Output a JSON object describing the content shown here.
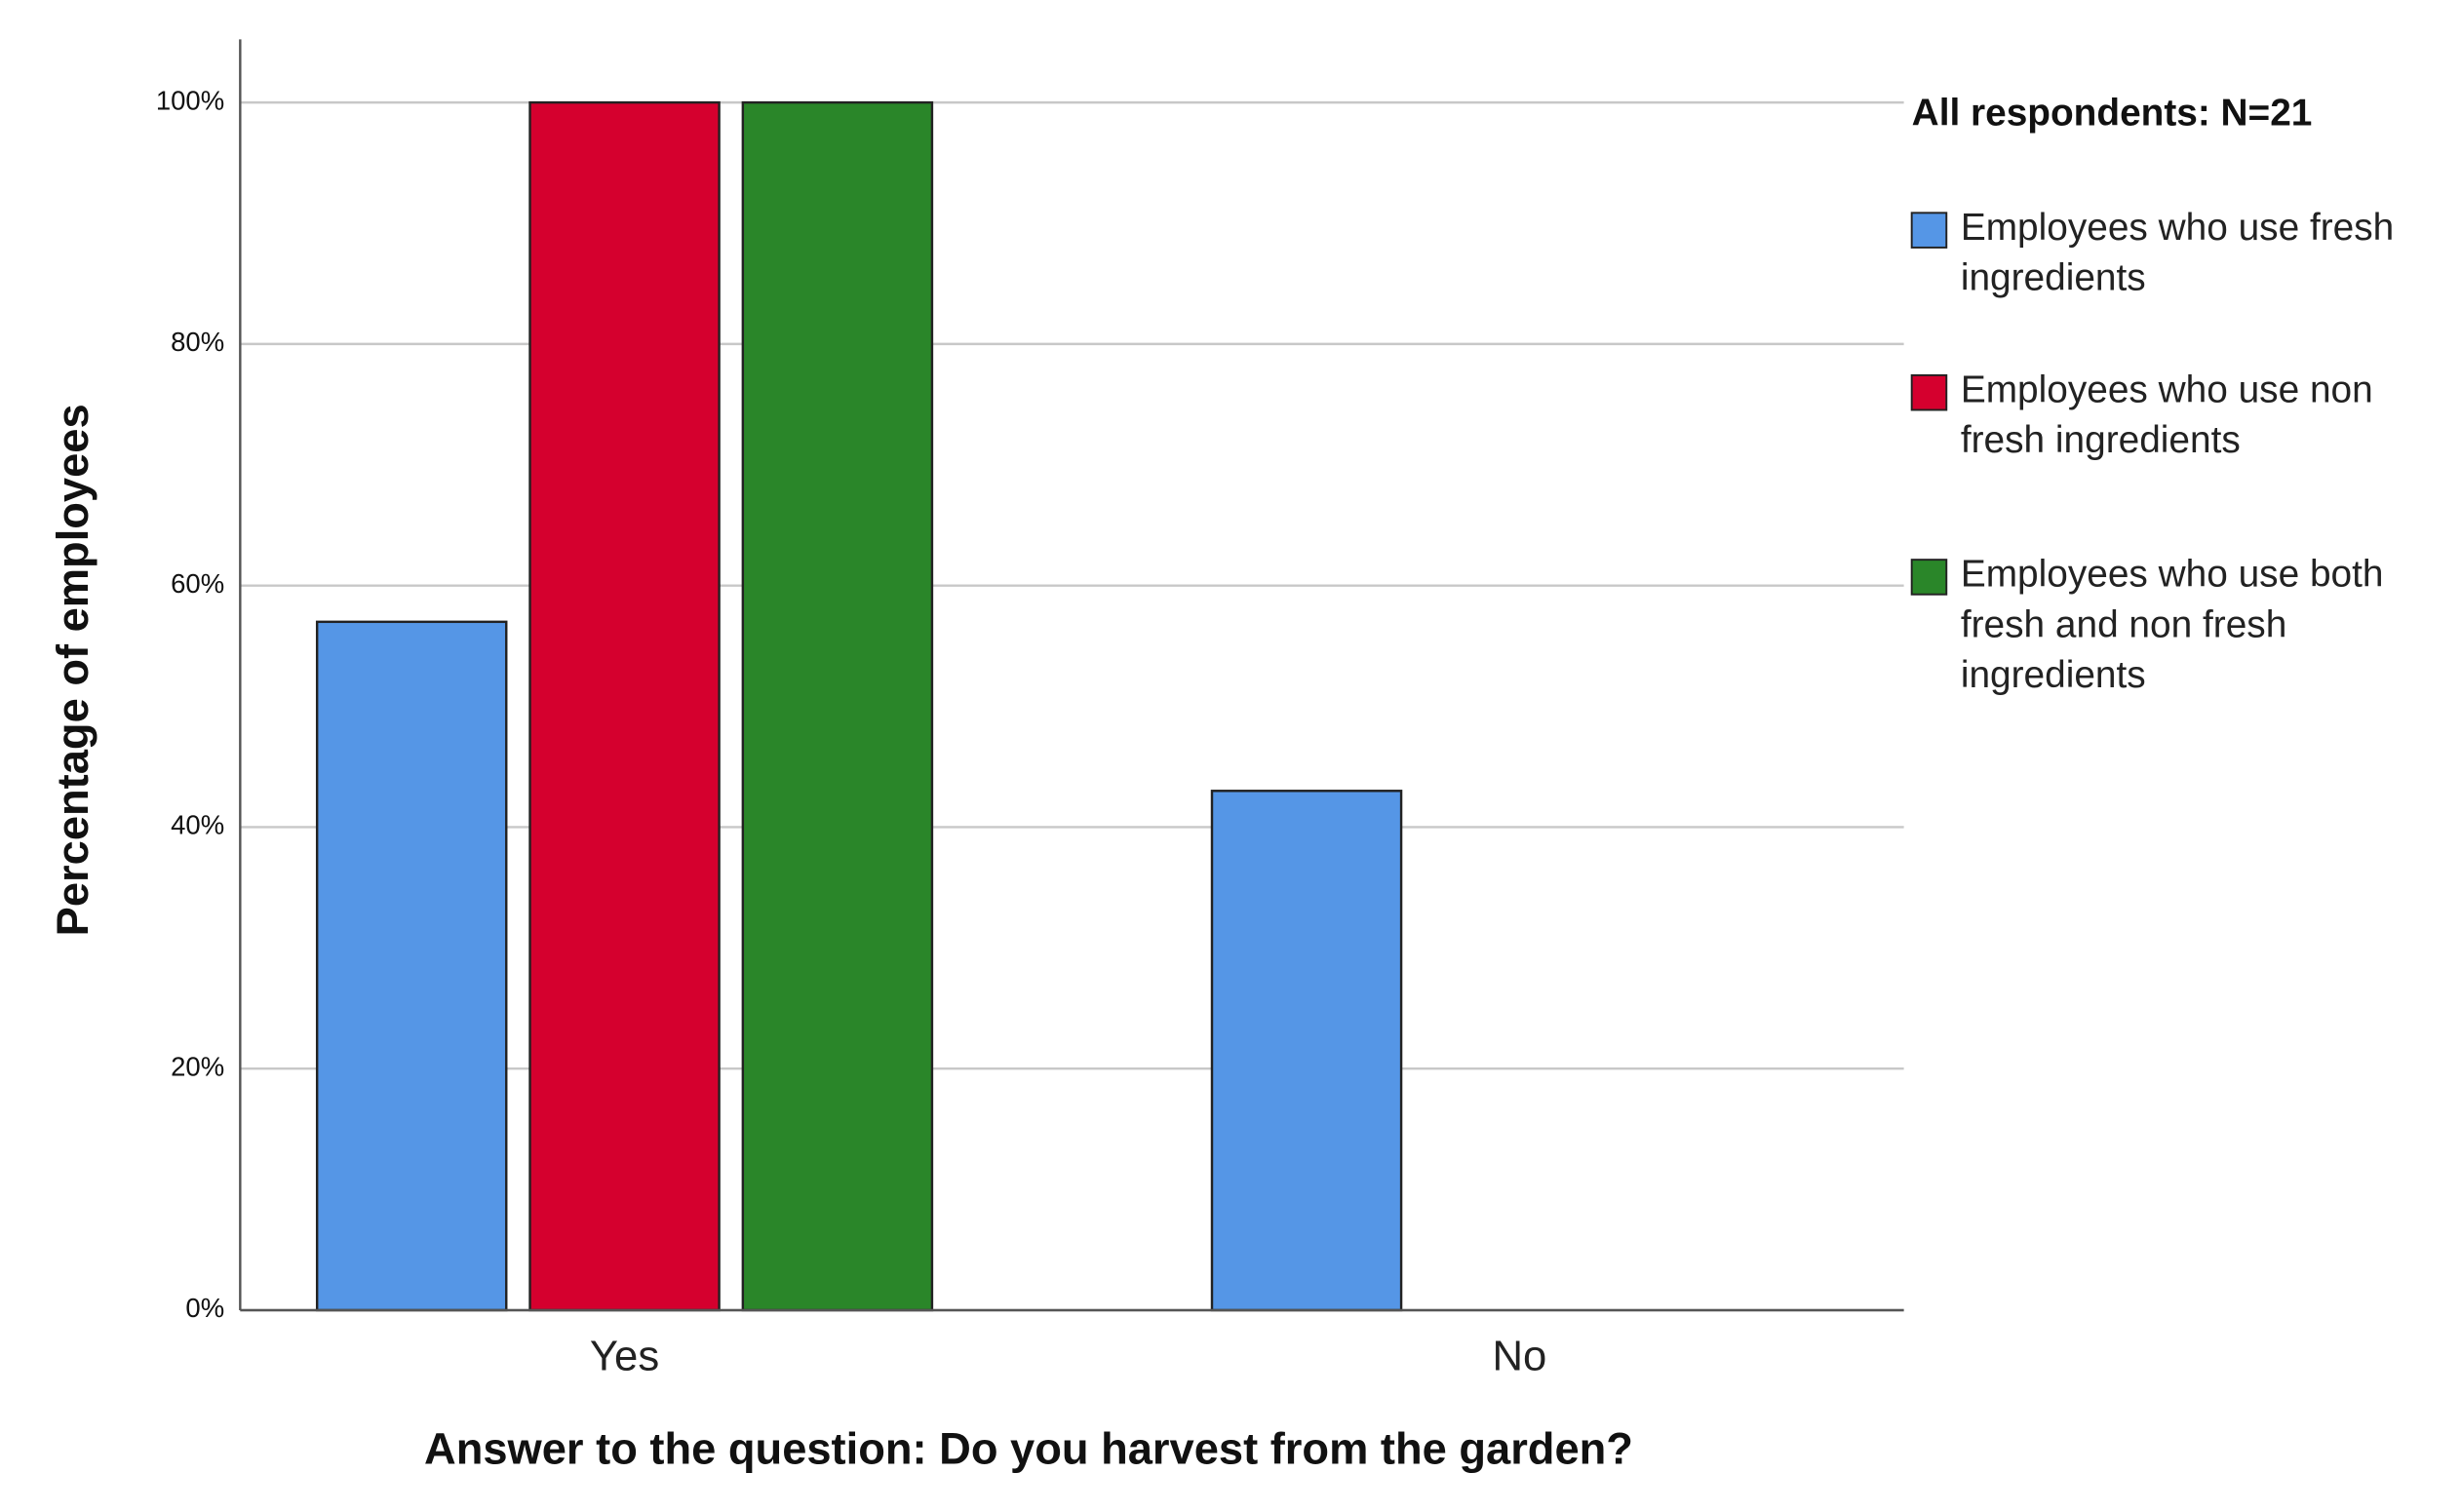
{
  "chart_data": {
    "type": "bar",
    "y_label": "Percentage of employees",
    "x_label": "Answer to the question: Do you harvest from the garden?",
    "legend_title": "All respondents: N=21",
    "legend_position": "right",
    "categories": [
      "Yes",
      "No"
    ],
    "series": [
      {
        "name": "Employees who use fresh ingredients",
        "color": "#5596e6",
        "values": [
          57,
          43
        ]
      },
      {
        "name": "Employees who use non fresh ingredients",
        "color": "#d5002e",
        "values": [
          100,
          0
        ]
      },
      {
        "name": "Employees who use both fresh and non fresh ingredients",
        "color": "#2a8629",
        "values": [
          100,
          0
        ]
      }
    ],
    "ylim": [
      0,
      100
    ],
    "yticks": [
      {
        "value": 0,
        "label": "0%"
      },
      {
        "value": 20,
        "label": "20%"
      },
      {
        "value": 40,
        "label": "40%"
      },
      {
        "value": 60,
        "label": "60%"
      },
      {
        "value": 80,
        "label": "80%"
      },
      {
        "value": 100,
        "label": "100%"
      }
    ],
    "grid": true
  }
}
